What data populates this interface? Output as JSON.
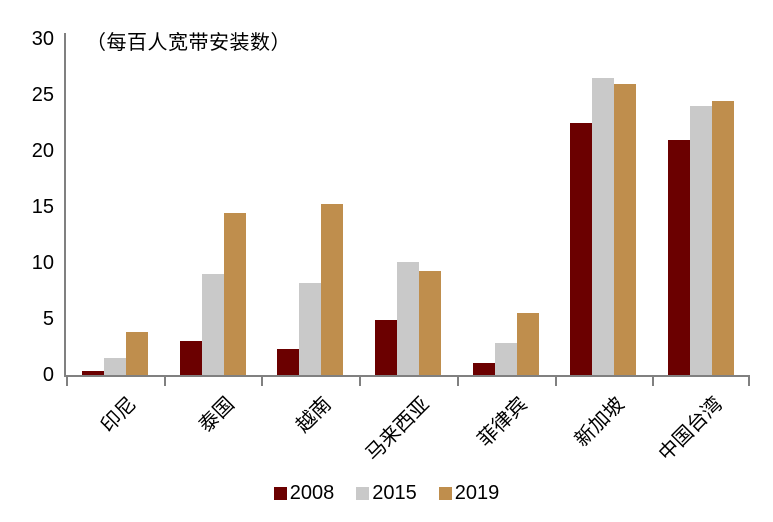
{
  "chart_data": {
    "type": "bar",
    "title": "（每百人宽带安装数）",
    "categories": [
      "印尼",
      "泰国",
      "越南",
      "马来西亚",
      "菲律宾",
      "新加坡",
      "中国台湾"
    ],
    "series": [
      {
        "name": "2008",
        "color": "#6b0000",
        "values": [
          0.4,
          3.0,
          2.3,
          4.9,
          1.1,
          22.5,
          21.0
        ]
      },
      {
        "name": "2015",
        "color": "#c9c9c9",
        "values": [
          1.5,
          9.0,
          8.2,
          10.1,
          2.9,
          26.5,
          24.0
        ]
      },
      {
        "name": "2019",
        "color": "#bf8e4d",
        "values": [
          3.8,
          14.5,
          15.3,
          9.3,
          5.5,
          26.0,
          24.5
        ]
      }
    ],
    "ylim": [
      0,
      30
    ],
    "yticks": [
      0,
      5,
      10,
      15,
      20,
      25,
      30
    ],
    "xlabel": "",
    "ylabel": "",
    "grid": false,
    "legend_position": "bottom",
    "axis_color": "#808080",
    "text_color": "#000000",
    "background_color": "#ffffff"
  }
}
